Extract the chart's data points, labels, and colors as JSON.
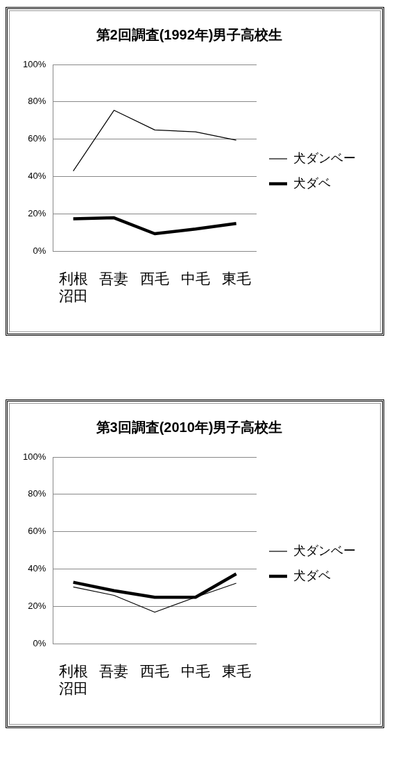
{
  "chart_data": [
    {
      "type": "line",
      "title": "第2回調査(1992年)男子高校生",
      "categories": [
        "利根沼田",
        "吾妻",
        "西毛",
        "中毛",
        "東毛"
      ],
      "series": [
        {
          "name": "犬ダンベー",
          "color": "#000000",
          "values": [
            43,
            75.5,
            65,
            64,
            59.5
          ]
        },
        {
          "name": "犬ダベ",
          "color": "#000000",
          "values": [
            17.5,
            18,
            9.5,
            12,
            15
          ]
        }
      ],
      "ylim": [
        0,
        100
      ],
      "yticks": [
        {
          "value": 0,
          "label": "0%"
        },
        {
          "value": 20,
          "label": "20%"
        },
        {
          "value": 40,
          "label": "40%"
        },
        {
          "value": 60,
          "label": "60%"
        },
        {
          "value": 80,
          "label": "80%"
        },
        {
          "value": 100,
          "label": "100%"
        }
      ],
      "grid": "y",
      "legend": "right",
      "marker": "none"
    },
    {
      "type": "line",
      "title": "第3回調査(2010年)男子高校生",
      "categories": [
        "利根沼田",
        "吾妻",
        "西毛",
        "中毛",
        "東毛"
      ],
      "series": [
        {
          "name": "犬ダンベー",
          "color": "#000000",
          "values": [
            30.5,
            26,
            17,
            25,
            32.5
          ]
        },
        {
          "name": "犬ダベ",
          "color": "#000000",
          "values": [
            33,
            28.5,
            25,
            25,
            37.5
          ]
        }
      ],
      "ylim": [
        0,
        100
      ],
      "yticks": [
        {
          "value": 0,
          "label": "0%"
        },
        {
          "value": 20,
          "label": "20%"
        },
        {
          "value": 40,
          "label": "40%"
        },
        {
          "value": 60,
          "label": "60%"
        },
        {
          "value": 80,
          "label": "80%"
        },
        {
          "value": 100,
          "label": "100%"
        }
      ],
      "grid": "y",
      "legend": "right",
      "marker": "none"
    }
  ]
}
